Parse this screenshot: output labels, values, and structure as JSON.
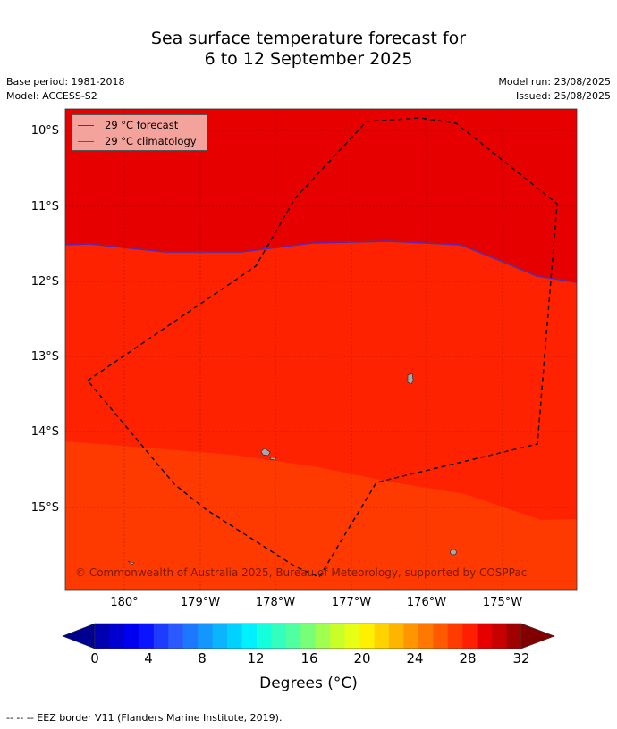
{
  "title_line1": "Sea surface temperature forecast for",
  "title_line2": "6 to 12 September 2025",
  "base_period": "Base period: 1981-2018",
  "model": "Model: ACCESS-S2",
  "model_run": "Model run: 23/08/2025",
  "issued": "Issued: 25/08/2025",
  "map": {
    "lat_labels": [
      "10°S",
      "11°S",
      "12°S",
      "13°S",
      "14°S",
      "15°S"
    ],
    "lon_labels": [
      "180°",
      "179°W",
      "178°W",
      "177°W",
      "176°W",
      "175°W"
    ],
    "copyright": "© Commonwealth of Australia 2025, Bureau of Meteorology, supported by COSPPac",
    "colors": {
      "warm_high": "#e60000",
      "warm_mid": "#ff2200",
      "warm_low": "#ff3a00",
      "eez": "#000000",
      "land": "#a8a8a8"
    }
  },
  "legend": {
    "forecast": {
      "label": "29 °C  forecast",
      "color": "#6a1fb3"
    },
    "climatology": {
      "label": "29 °C  climatology",
      "color": "#2e7d12"
    }
  },
  "colorbar": {
    "tick_labels": [
      "0",
      "4",
      "8",
      "12",
      "16",
      "20",
      "24",
      "28",
      "32"
    ],
    "label": "Degrees (°C)",
    "colors": [
      "#0000b0",
      "#0000d0",
      "#0000f0",
      "#0a14ff",
      "#1e3cff",
      "#2a5aff",
      "#1e78ff",
      "#1496ff",
      "#0ab4ff",
      "#00d2ff",
      "#00f0ff",
      "#14ffdc",
      "#32ffbe",
      "#50ffa0",
      "#78ff78",
      "#a0ff50",
      "#c8ff28",
      "#e6ff14",
      "#fff000",
      "#ffd200",
      "#ffb400",
      "#ff9600",
      "#ff7800",
      "#ff5a00",
      "#ff3c00",
      "#ff1e00",
      "#e60000",
      "#c80000",
      "#a00000"
    ],
    "min_color": "#000090",
    "max_color": "#800000"
  },
  "footnote": "--  --  -- EEZ border V11 (Flanders Marine Institute, 2019)."
}
